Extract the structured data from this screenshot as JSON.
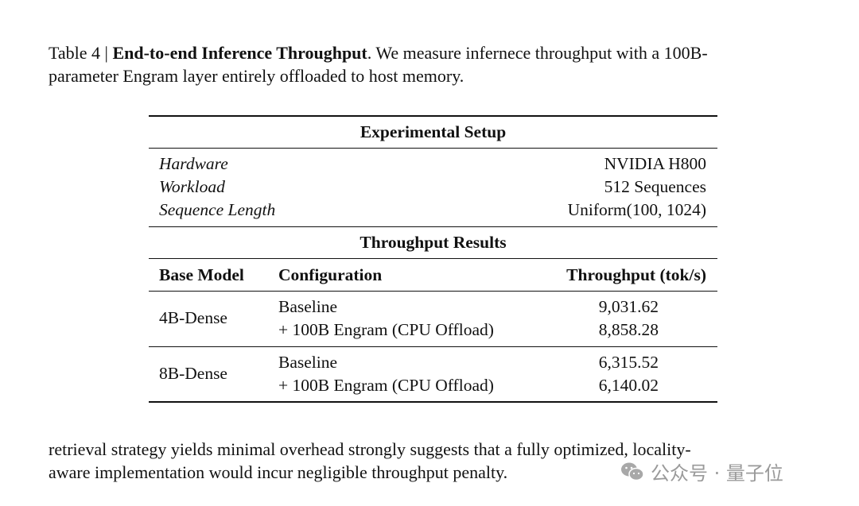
{
  "caption": {
    "label": "Table 4 | ",
    "title": "End-to-end Inference Throughput",
    "text1": ". We measure infernece throughput with a 100B-",
    "text2": "parameter Engram layer entirely offloaded to host memory."
  },
  "table": {
    "setup_header": "Experimental Setup",
    "setup": [
      {
        "key": "Hardware",
        "value": "NVIDIA H800"
      },
      {
        "key": "Workload",
        "value": "512 Sequences"
      },
      {
        "key": "Sequence Length",
        "value": "Uniform(100, 1024)"
      }
    ],
    "results_header": "Throughput Results",
    "columns": [
      "Base Model",
      "Configuration",
      "Throughput (tok/s)"
    ],
    "groups": [
      {
        "model": "4B-Dense",
        "rows": [
          {
            "config": "Baseline",
            "throughput": "9,031.62"
          },
          {
            "config": "+ 100B Engram (CPU Offload)",
            "throughput": "8,858.28"
          }
        ]
      },
      {
        "model": "8B-Dense",
        "rows": [
          {
            "config": "Baseline",
            "throughput": "6,315.52"
          },
          {
            "config": "+ 100B Engram (CPU Offload)",
            "throughput": "6,140.02"
          }
        ]
      }
    ]
  },
  "body": {
    "line1": "retrieval strategy yields minimal overhead strongly suggests that a fully optimized, locality-",
    "line2": "aware implementation would incur negligible throughput penalty."
  },
  "watermark": {
    "text": "公众号 · 量子位",
    "icon": "wechat-icon"
  }
}
